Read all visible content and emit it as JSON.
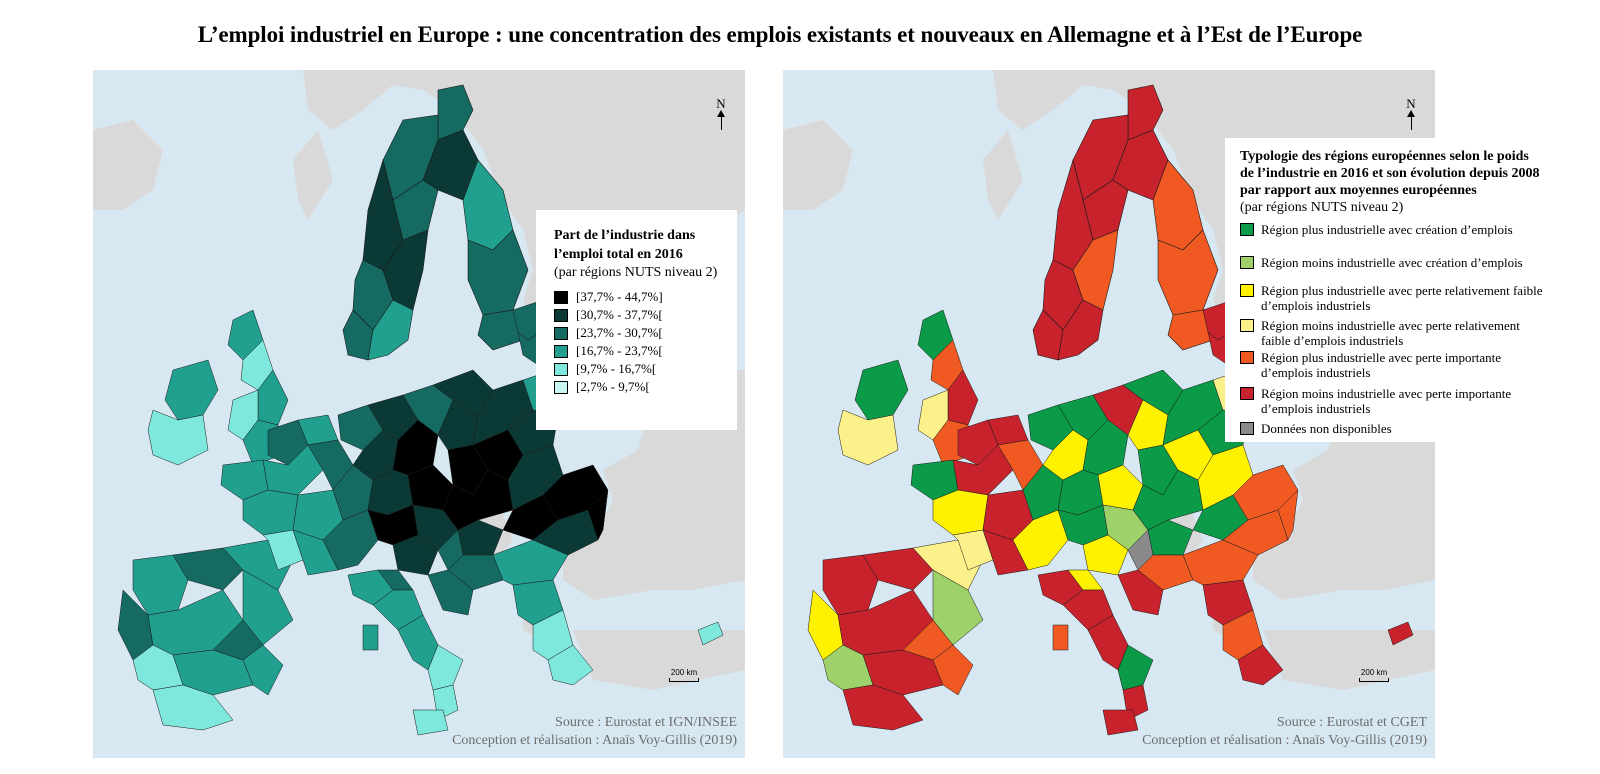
{
  "title": "L’emploi industriel en Europe : une concentration des emplois existants et nouveaux en Allemagne et à l’Est de l’Europe",
  "left_map": {
    "north_label": "N",
    "scale_label": "200 km",
    "legend": {
      "title_line1": "Part de l’industrie dans",
      "title_line2": "l’emploi total en 2016",
      "subtitle": "(par régions NUTS niveau 2)",
      "classes": [
        {
          "label": "[37,7% - 44,7%]",
          "color": "#000000"
        },
        {
          "label": "[30,7% - 37,7%[",
          "color": "#0b3a36"
        },
        {
          "label": "[23,7% - 30,7%[",
          "color": "#156b61"
        },
        {
          "label": "[16,7% - 23,7%[",
          "color": "#21a090"
        },
        {
          "label": "[9,7% - 16,7%[",
          "color": "#7ee8dc"
        },
        {
          "label": "[2,7% - 9,7%[",
          "color": "#c8f7f3"
        }
      ]
    },
    "source": "Source : Eurostat et IGN/INSEE",
    "credit": "Conception et réalisation : Anaïs Voy-Gillis (2019)"
  },
  "right_map": {
    "north_label": "N",
    "scale_label": "200 km",
    "legend": {
      "title_line1": "Typologie des régions européennes selon le poids",
      "title_line2": "de l’industrie en 2016 et son évolution depuis 2008",
      "title_line3": "par rapport aux moyennes européennes",
      "subtitle": "(par régions NUTS niveau 2)",
      "categories": [
        {
          "line1": "Région plus industrielle avec création d’emplois",
          "line2": "",
          "color": "#0a9a48"
        },
        {
          "line1": "Région moins industrielle avec création d’emplois",
          "line2": "",
          "color": "#9fd16a"
        },
        {
          "line1": "Région plus industrielle avec perte relativement faible",
          "line2": "d’emplois industriels",
          "color": "#fff200"
        },
        {
          "line1": "Région moins industrielle avec perte relativement",
          "line2": "faible d’emplois industriels",
          "color": "#fbf08a"
        },
        {
          "line1": "Région plus industrielle avec perte importante",
          "line2": "d’emplois industriels",
          "color": "#f05a22"
        },
        {
          "line1": "Région moins industrielle avec perte importante",
          "line2": "d’emplois industriels",
          "color": "#c8232d"
        },
        {
          "line1": "Données non disponibles",
          "line2": "",
          "color": "#8a8a8a"
        }
      ]
    },
    "source": "Source : Eurostat et CGET",
    "credit": "Conception et réalisation : Anaïs Voy-Gillis (2019)"
  },
  "colors": {
    "sea": "#d7e8f2",
    "non_eu_land": "#d9d9d9",
    "region_border": "#1a1a1a"
  }
}
